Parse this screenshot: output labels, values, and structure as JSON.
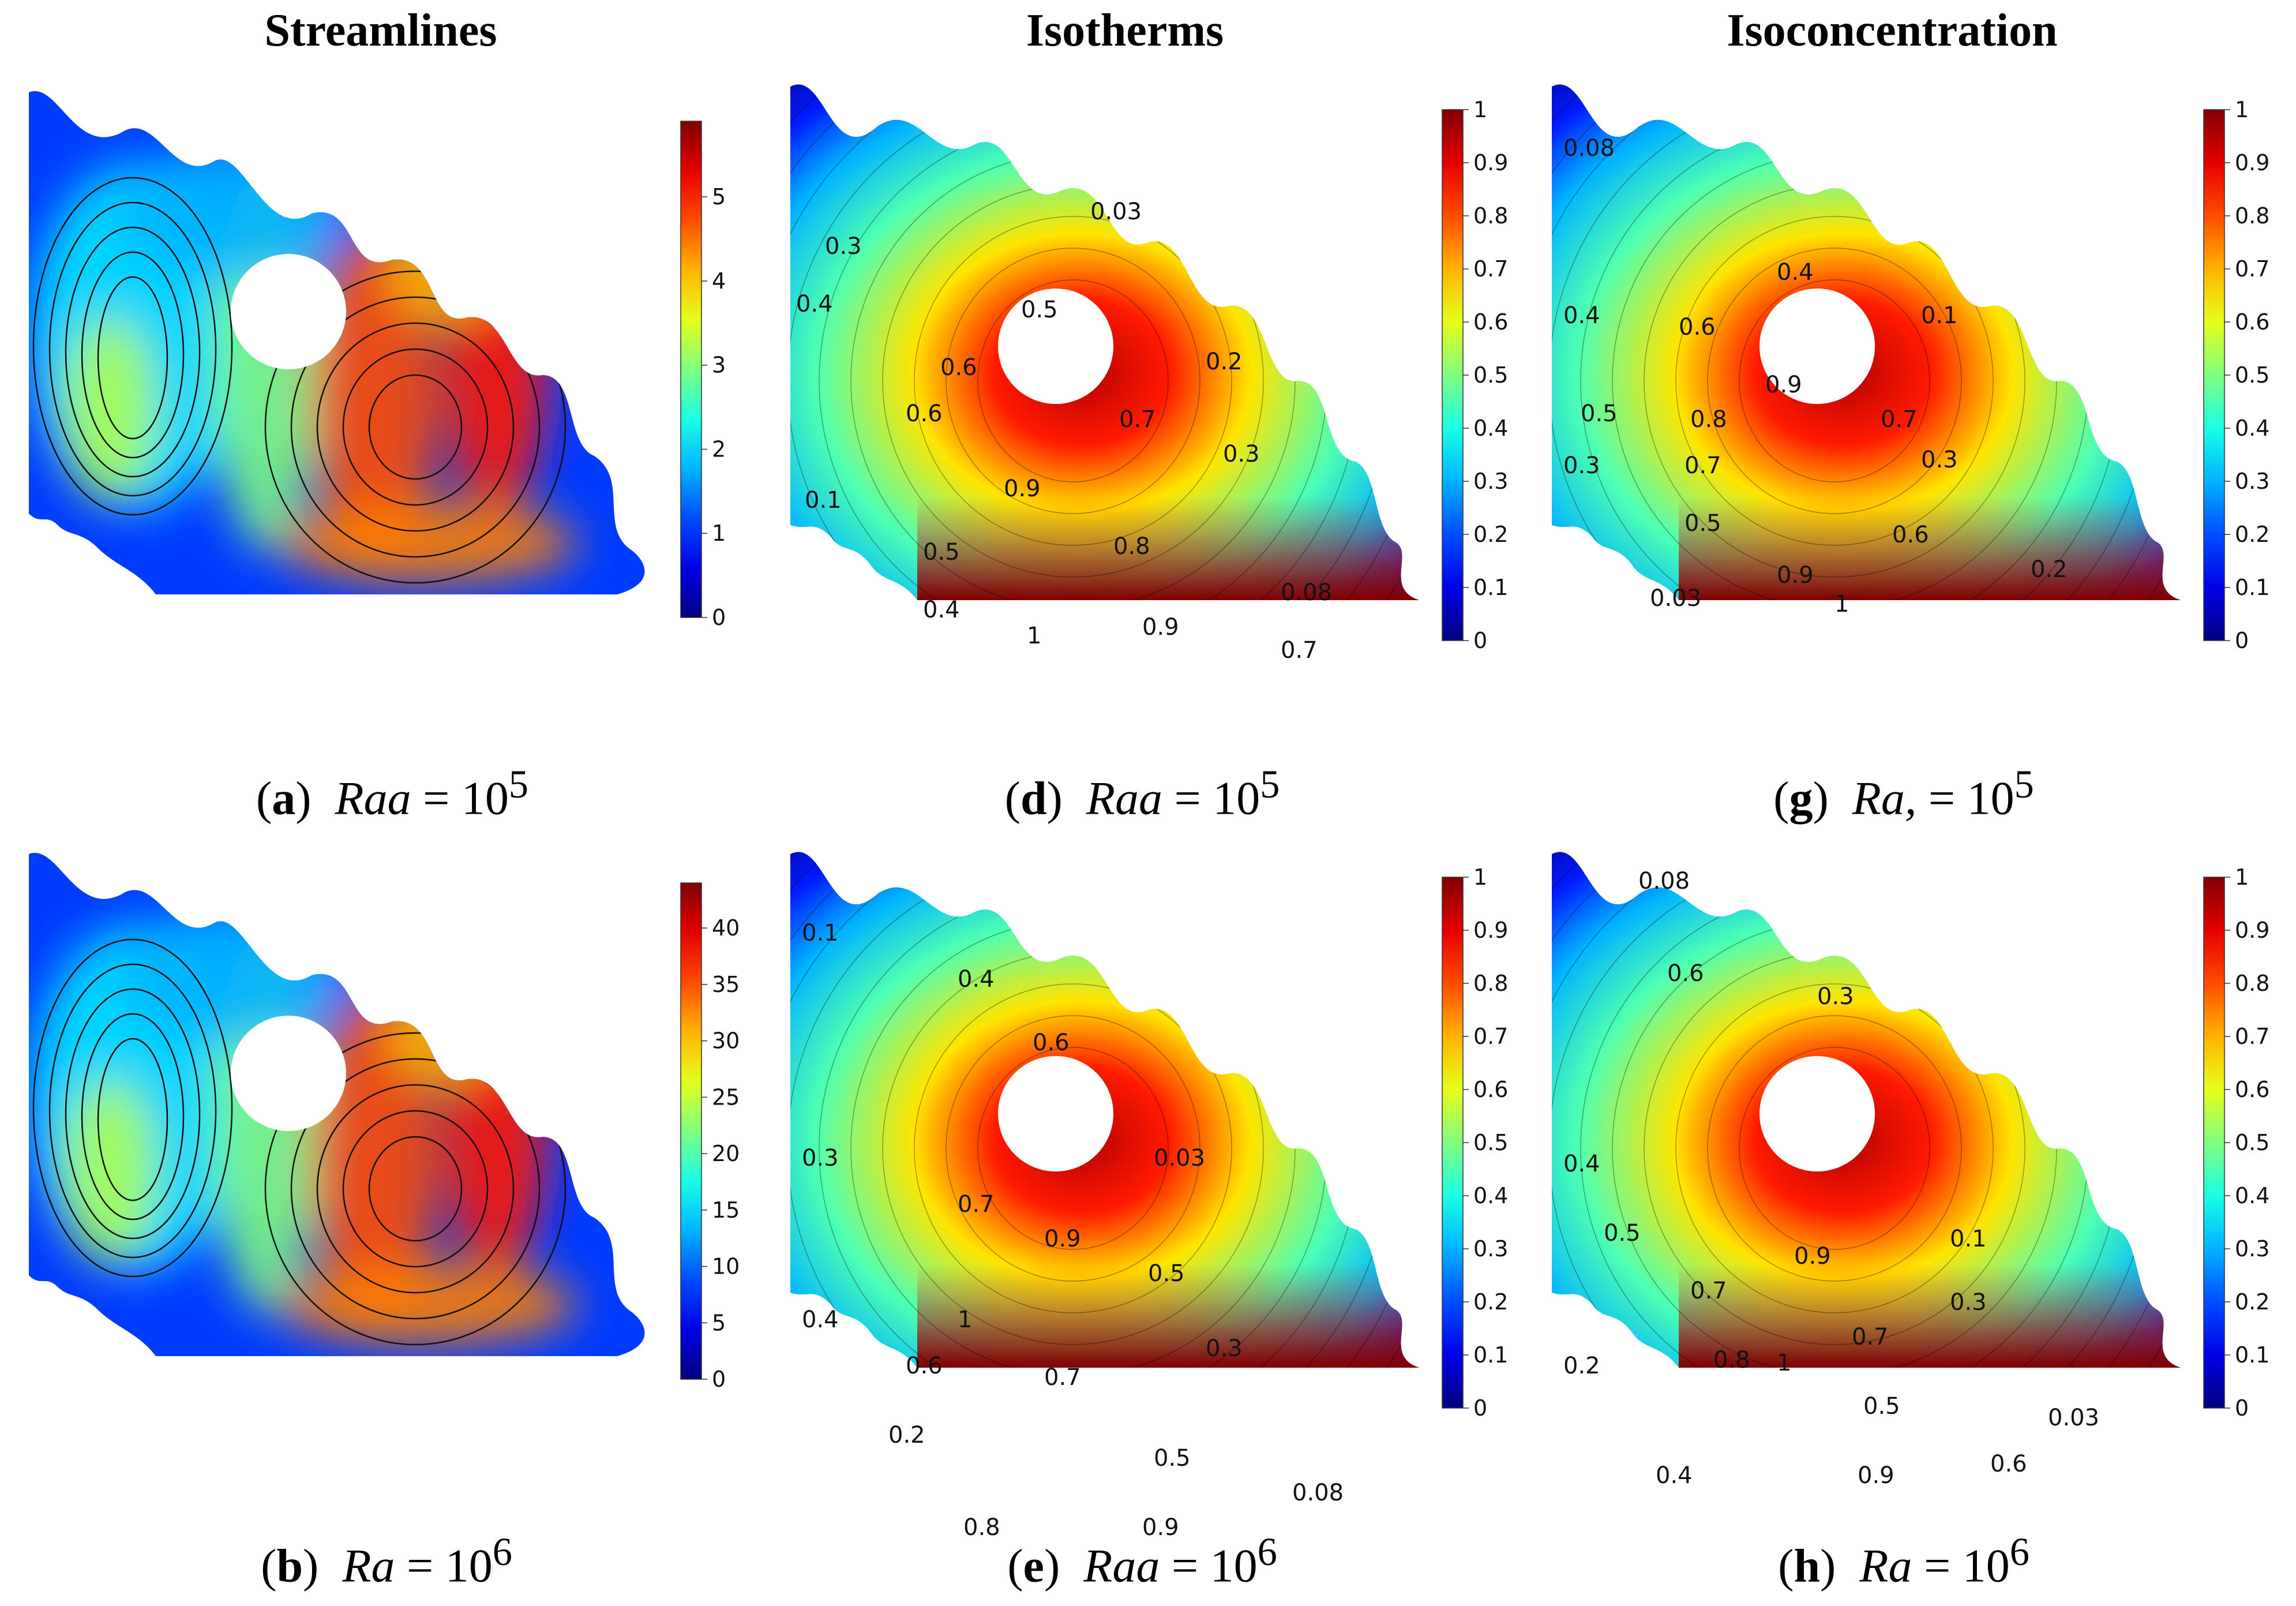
{
  "columns": [
    "Streamlines",
    "Isotherms",
    "Isoconcentration"
  ],
  "panels": [
    {
      "id": "a",
      "kind": "stream",
      "caption": {
        "letter": "a",
        "var": "Raa",
        "rhs": "= 10",
        "exp": "5"
      },
      "colorbar": {
        "ticks": [
          "0",
          "1",
          "2",
          "3",
          "4",
          "5"
        ],
        "max": 5.9
      }
    },
    {
      "id": "d",
      "kind": "field",
      "variant": "iso1",
      "caption": {
        "letter": "d",
        "var": "Raa",
        "rhs": "= 10",
        "exp": "5"
      },
      "colorbar": {
        "ticks": [
          "0",
          "0.1",
          "0.2",
          "0.3",
          "0.4",
          "0.5",
          "0.6",
          "0.7",
          "0.8",
          "0.9",
          "1"
        ],
        "max": 1
      },
      "labels": [
        "0.03",
        "0.3",
        "0.4",
        "0.5",
        "0.6",
        "0.6",
        "0.7",
        "0.2",
        "0.3",
        "0.9",
        "0.1",
        "0.5",
        "0.8",
        "0.08",
        "0.4",
        "1",
        "0.9",
        "0.7"
      ]
    },
    {
      "id": "g",
      "kind": "field",
      "variant": "conc1",
      "caption": {
        "letter": "g",
        "var": "Ra,",
        "rhs": "= 10",
        "exp": "5"
      },
      "colorbar": {
        "ticks": [
          "0",
          "0.1",
          "0.2",
          "0.3",
          "0.4",
          "0.5",
          "0.6",
          "0.7",
          "0.8",
          "0.9",
          "1"
        ],
        "max": 1
      },
      "labels": [
        "0.08",
        "0.4",
        "0.4",
        "0.6",
        "0.1",
        "0.9",
        "0.5",
        "0.8",
        "0.7",
        "0.3",
        "0.7",
        "0.3",
        "0.5",
        "0.6",
        "0.03",
        "0.9",
        "0.2",
        "1"
      ]
    },
    {
      "id": "b",
      "kind": "stream",
      "caption": {
        "letter": "b",
        "var": "Ra",
        "rhs": "= 10",
        "exp": "6"
      },
      "colorbar": {
        "ticks": [
          "0",
          "5",
          "10",
          "15",
          "20",
          "25",
          "30",
          "35",
          "40"
        ],
        "max": 44
      }
    },
    {
      "id": "e",
      "kind": "field",
      "variant": "iso2",
      "caption": {
        "letter": "e",
        "var": "Raa",
        "rhs": "= 10",
        "exp": "6"
      },
      "colorbar": {
        "ticks": [
          "0",
          "0.1",
          "0.2",
          "0.3",
          "0.4",
          "0.5",
          "0.6",
          "0.7",
          "0.8",
          "0.9",
          "1"
        ],
        "max": 1
      },
      "labels": [
        "0.1",
        "0.4",
        "0.6",
        "0.3",
        "0.03",
        "0.7",
        "0.9",
        "0.5",
        "0.4",
        "1",
        "0.6",
        "0.7",
        "0.3",
        "0.2",
        "0.5",
        "0.08",
        "0.8",
        "0.9"
      ]
    },
    {
      "id": "h",
      "kind": "field",
      "variant": "conc2",
      "caption": {
        "letter": "h",
        "var": "Ra",
        "rhs": "= 10",
        "exp": "6"
      },
      "colorbar": {
        "ticks": [
          "0",
          "0.1",
          "0.2",
          "0.3",
          "0.4",
          "0.5",
          "0.6",
          "0.7",
          "0.8",
          "0.9",
          "1"
        ],
        "max": 1
      },
      "labels": [
        "0.08",
        "0.6",
        "0.3",
        "0.4",
        "0.5",
        "0.1",
        "0.9",
        "0.7",
        "0.3",
        "0.7",
        "0.2",
        "0.8",
        "1",
        "0.5",
        "0.03",
        "0.4",
        "0.9",
        "0.6"
      ]
    }
  ]
}
